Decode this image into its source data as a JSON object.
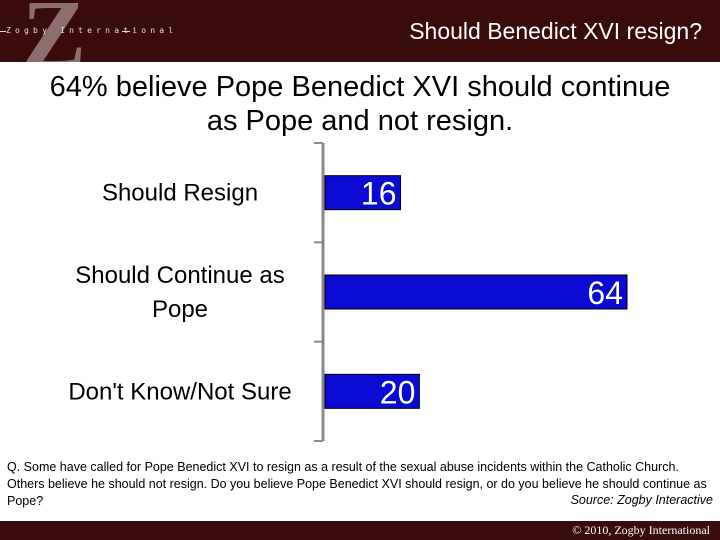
{
  "brand": {
    "logo_letter": "Z",
    "logo_text": "Zogby International"
  },
  "header": {
    "title": "Should Benedict XVI resign?"
  },
  "headline": {
    "line1": "64% believe Pope Benedict XVI should continue",
    "line2": "as Pope and not resign."
  },
  "chart_data": {
    "type": "bar",
    "orientation": "horizontal",
    "categories": [
      [
        "Should Resign"
      ],
      [
        "Should Continue as",
        "Pope"
      ],
      [
        "Don't Know/Not Sure"
      ]
    ],
    "values": [
      16,
      64,
      20
    ],
    "value_labels": [
      "16",
      "64",
      "20"
    ],
    "xlim": [
      0,
      64
    ],
    "grid": false,
    "bar_color": "#0a0ad2",
    "label_color": "#ffffff"
  },
  "question": {
    "text": "Q. Some have called for Pope Benedict XVI to resign as a result of the sexual abuse incidents within the Catholic Church. Others believe he should not resign. Do you believe Pope Benedict XVI should resign, or do you believe he should continue as Pope?",
    "source": "Source:  Zogby Interactive"
  },
  "footer": {
    "copyright": "© 2010, Zogby International"
  },
  "colors": {
    "band": "#3a0b0b",
    "bar": "#0a0ad2"
  }
}
